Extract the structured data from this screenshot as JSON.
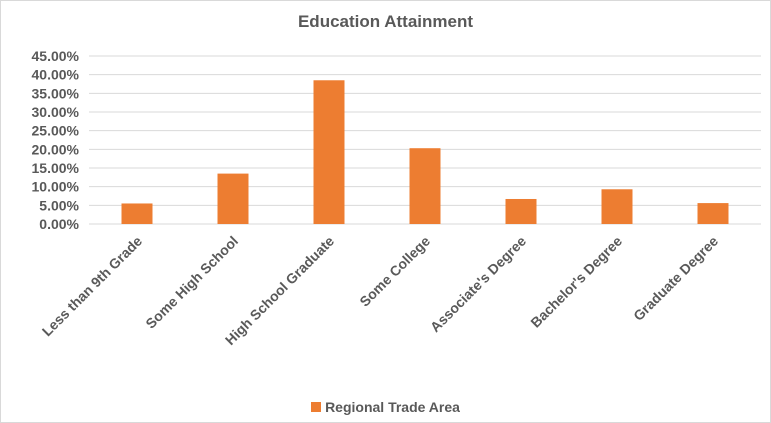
{
  "chart_data": {
    "type": "bar",
    "title": "Education Attainment",
    "xlabel": "",
    "ylabel": "",
    "categories": [
      "Less than 9th Grade",
      "Some High School",
      "High School Graduate",
      "Some College",
      "Associate's Degree",
      "Bachelor's Degree",
      "Graduate Degree"
    ],
    "series": [
      {
        "name": "Regional Trade Area",
        "values": [
          0.055,
          0.135,
          0.385,
          0.203,
          0.067,
          0.093,
          0.056
        ],
        "color": "#ED7D31"
      }
    ],
    "ylim": [
      0,
      0.45
    ],
    "yticks": [
      "0.00%",
      "5.00%",
      "10.00%",
      "15.00%",
      "20.00%",
      "25.00%",
      "30.00%",
      "35.00%",
      "40.00%",
      "45.00%"
    ],
    "grid": true,
    "gridColor": "#d9d9d9",
    "legend": "bottom"
  }
}
